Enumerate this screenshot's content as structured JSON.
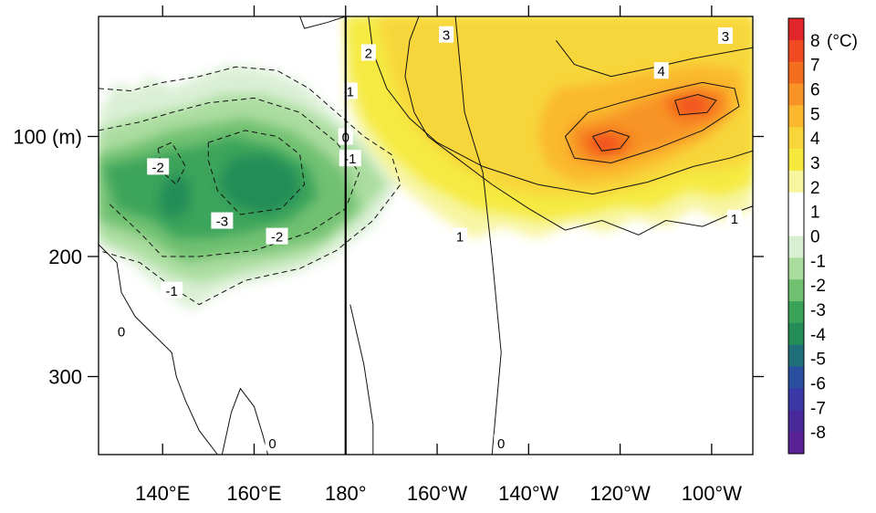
{
  "chart_data": {
    "type": "heatmap",
    "title": "",
    "xlabel": "",
    "ylabel": "",
    "x_axis": {
      "ticks": [
        {
          "lon": 140,
          "label": "140°E"
        },
        {
          "lon": 160,
          "label": "160°E"
        },
        {
          "lon": 180,
          "label": "180°"
        },
        {
          "lon": 200,
          "label": "160°W"
        },
        {
          "lon": 220,
          "label": "140°W"
        },
        {
          "lon": 240,
          "label": "120°W"
        },
        {
          "lon": 260,
          "label": "100°W"
        }
      ],
      "range": [
        126,
        269
      ]
    },
    "y_axis": {
      "ticks": [
        {
          "depth": 100,
          "label": "100 (m)"
        },
        {
          "depth": 200,
          "label": "200"
        },
        {
          "depth": 300,
          "label": "300"
        }
      ],
      "range": [
        0,
        365
      ],
      "reversed": true
    },
    "colorbar": {
      "unit": "(°C)",
      "levels": [
        8,
        7,
        6,
        5,
        4,
        3,
        2,
        1,
        0,
        -1,
        -2,
        -3,
        -4,
        -5,
        -6,
        -7,
        -8
      ],
      "labels": [
        "8",
        "7",
        "6",
        "5",
        "4",
        "3",
        "2",
        "1",
        "0",
        "-1",
        "-2",
        "-3",
        "-4",
        "-5",
        "-6",
        "-7",
        "-8"
      ],
      "colors": [
        "#e0262a",
        "#f04a22",
        "#f56d1f",
        "#f89325",
        "#fbb82e",
        "#f8d53a",
        "#f5ea3c",
        "#f7f59d",
        "#ffffff",
        "#ffffff",
        "#d8efd2",
        "#a9dc9d",
        "#6fc06f",
        "#3aa35a",
        "#248c56",
        "#1f6f7a",
        "#2a4fa0",
        "#3a38a6",
        "#4a2a9a",
        "#5a2395"
      ]
    },
    "features": [
      {
        "kind": "cold-anomaly",
        "lon": 147,
        "depth": 115,
        "value": -3.4
      },
      {
        "kind": "cold-anomaly",
        "lon": 158,
        "depth": 130,
        "value": -3.6
      },
      {
        "kind": "warm-anomaly",
        "lon": 230,
        "depth": 70,
        "value": 4.5
      },
      {
        "kind": "warm-anomaly",
        "lon": 237,
        "depth": 110,
        "value": 6.6
      },
      {
        "kind": "warm-anomaly",
        "lon": 253,
        "depth": 75,
        "value": 6.4
      }
    ],
    "contour_labels": [
      {
        "text": "-2",
        "lon": 139,
        "depth": 125
      },
      {
        "text": "-3",
        "lon": 153,
        "depth": 170
      },
      {
        "text": "-2",
        "lon": 165,
        "depth": 183
      },
      {
        "text": "-1",
        "lon": 142,
        "depth": 228
      },
      {
        "text": "0",
        "lon": 131,
        "depth": 262
      },
      {
        "text": "0",
        "lon": 164,
        "depth": 355
      },
      {
        "text": "-1",
        "lon": 181,
        "depth": 118
      },
      {
        "text": "0",
        "lon": 180,
        "depth": 100
      },
      {
        "text": "1",
        "lon": 181,
        "depth": 62
      },
      {
        "text": "2",
        "lon": 185,
        "depth": 30
      },
      {
        "text": "3",
        "lon": 202,
        "depth": 15
      },
      {
        "text": "4",
        "lon": 249,
        "depth": 45
      },
      {
        "text": "3",
        "lon": 263,
        "depth": 16
      },
      {
        "text": "1",
        "lon": 265,
        "depth": 168
      },
      {
        "text": "1",
        "lon": 205,
        "depth": 183
      },
      {
        "text": "0",
        "lon": 214,
        "depth": 355
      }
    ]
  }
}
